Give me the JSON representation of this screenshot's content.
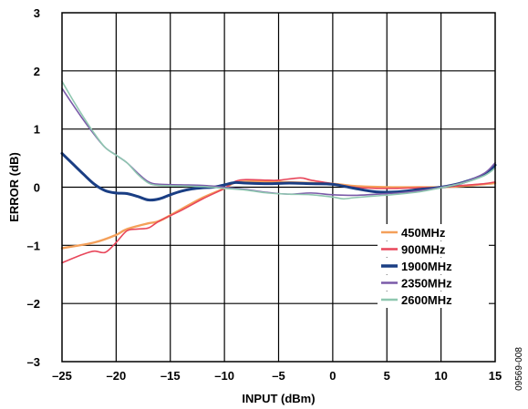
{
  "chart_data": {
    "type": "line",
    "xlabel": "INPUT (dBm)",
    "ylabel": "ERROR (dB)",
    "xlim": [
      -25,
      15
    ],
    "ylim": [
      -3,
      3
    ],
    "xticks": [
      "–25",
      "–20",
      "–15",
      "–10",
      "–5",
      "0",
      "5",
      "10",
      "15"
    ],
    "yticks": [
      "3",
      "2",
      "1",
      "0",
      "–1",
      "–2",
      "–3"
    ],
    "grid": true,
    "legend_position": "lower-right",
    "figure_id": "09569-008",
    "series": [
      {
        "name": "450MHz",
        "color": "#f4a05a",
        "x": [
          -25,
          -22,
          -20,
          -19,
          -17,
          -16,
          -14,
          -12,
          -10,
          -9,
          -7,
          -5,
          -3,
          0,
          2,
          5,
          8,
          10,
          12,
          15
        ],
        "y": [
          -1.05,
          -0.95,
          -0.82,
          -0.72,
          -0.62,
          -0.58,
          -0.38,
          -0.18,
          -0.02,
          0.08,
          0.1,
          0.09,
          0.08,
          0.06,
          0.02,
          0.0,
          0.0,
          0.0,
          0.02,
          0.07
        ]
      },
      {
        "name": "900MHz",
        "color": "#e8465a",
        "x": [
          -25,
          -23,
          -22,
          -21,
          -20,
          -19,
          -18,
          -17,
          -16,
          -14,
          -12,
          -10,
          -9,
          -8,
          -6,
          -5,
          -3,
          -2,
          0,
          2,
          4,
          6,
          8,
          10,
          12,
          14,
          15
        ],
        "y": [
          -1.3,
          -1.15,
          -1.1,
          -1.12,
          -0.95,
          -0.75,
          -0.72,
          -0.7,
          -0.58,
          -0.4,
          -0.2,
          -0.02,
          0.1,
          0.13,
          0.12,
          0.12,
          0.16,
          0.12,
          0.06,
          0.0,
          -0.02,
          -0.02,
          -0.01,
          0.0,
          0.03,
          0.06,
          0.09
        ]
      },
      {
        "name": "1900MHz",
        "color": "#1a3e84",
        "x": [
          -25,
          -24,
          -23,
          -22,
          -21,
          -20,
          -19,
          -18,
          -17,
          -16,
          -15,
          -14,
          -13,
          -12,
          -11,
          -10,
          -9,
          -8,
          -6,
          -4,
          -2,
          0,
          2,
          4,
          6,
          8,
          10,
          12,
          14,
          15
        ],
        "y": [
          0.58,
          0.4,
          0.22,
          0.05,
          -0.06,
          -0.1,
          -0.11,
          -0.16,
          -0.22,
          -0.2,
          -0.13,
          -0.07,
          -0.03,
          -0.01,
          0.0,
          0.04,
          0.08,
          0.07,
          0.06,
          0.07,
          0.06,
          0.05,
          -0.02,
          -0.08,
          -0.08,
          -0.04,
          0.0,
          0.08,
          0.22,
          0.38
        ]
      },
      {
        "name": "2350MHz",
        "color": "#7a5aa8",
        "x": [
          -25,
          -24,
          -23,
          -22,
          -21,
          -20,
          -19,
          -18,
          -17,
          -16,
          -14,
          -12,
          -10,
          -8,
          -6,
          -4,
          -2,
          0,
          2,
          4,
          6,
          8,
          10,
          12,
          14,
          15
        ],
        "y": [
          1.7,
          1.42,
          1.15,
          0.9,
          0.68,
          0.55,
          0.42,
          0.24,
          0.09,
          0.05,
          0.04,
          0.03,
          0.0,
          -0.04,
          -0.09,
          -0.12,
          -0.1,
          -0.13,
          -0.14,
          -0.12,
          -0.1,
          -0.06,
          0.0,
          0.08,
          0.24,
          0.42
        ]
      },
      {
        "name": "2600MHz",
        "color": "#8fc7b0",
        "x": [
          -25,
          -24,
          -23,
          -22,
          -21,
          -20,
          -19,
          -18,
          -17,
          -16,
          -14,
          -12,
          -10,
          -8,
          -6,
          -4,
          -2,
          0,
          1,
          2,
          4,
          6,
          8,
          10,
          12,
          14,
          15
        ],
        "y": [
          1.82,
          1.5,
          1.2,
          0.92,
          0.68,
          0.55,
          0.42,
          0.22,
          0.07,
          0.03,
          0.02,
          0.01,
          -0.02,
          -0.05,
          -0.1,
          -0.12,
          -0.13,
          -0.17,
          -0.2,
          -0.18,
          -0.15,
          -0.12,
          -0.08,
          -0.01,
          0.07,
          0.2,
          0.33
        ]
      }
    ]
  }
}
